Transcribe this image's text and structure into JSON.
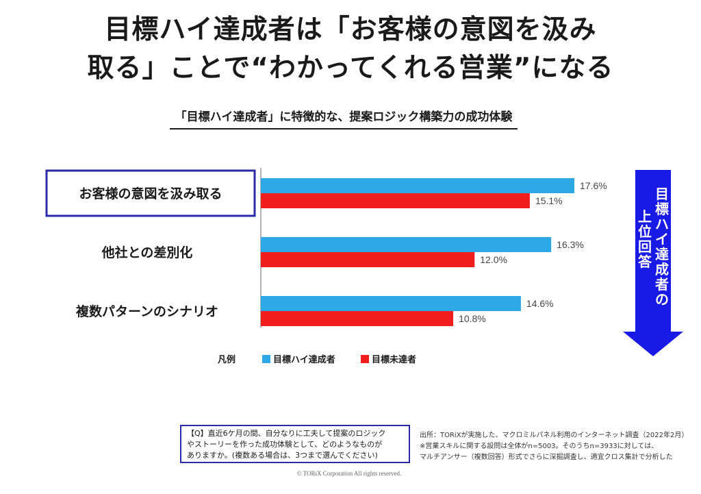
{
  "title_line1": "目標ハイ達成者は「お客様の意図を汲み",
  "title_line2": "取る」ことで“わかってくれる営業”になる",
  "subtitle": "「目標ハイ達成者」に特徴的な、提案ロジック構築力の成功体験",
  "arrow_label": [
    "目",
    "標",
    "ハ",
    "イ",
    "達",
    "成",
    "者",
    "の",
    "上",
    "位",
    "回",
    "答"
  ],
  "legend_title": "凡例",
  "question_lines": [
    "【Q】直近6ケ月の間、自分なりに工夫して提案のロジック",
    "やストーリーを作った成功体験として、どのようなものが",
    "ありますか。(複数ある場合は、3つまで選んでください)"
  ],
  "source_lines": [
    "出所：TORiXが実施した、マクロミルパネル利用のインターネット調査（2022年2月）",
    "※営業スキルに関する設問は全体がn=5003。そのうちn=3933に対しては、",
    "マルチアンサー（複数回答）形式でさらに深掘調査し、適宜クロス集計で分析した"
  ],
  "copyright": "© TORiX Corporation All rights reserved.",
  "colors": {
    "series_high": "#2fa8e6",
    "series_not": "#f01e1e",
    "highlight_border": "#2a2aa8",
    "arrow": "#1a1ae6"
  },
  "chart_data": {
    "type": "bar",
    "orientation": "horizontal",
    "categories": [
      "お客様の意図を汲み取る",
      "他社との差別化",
      "複数パターンのシナリオ"
    ],
    "highlighted_category": "お客様の意図を汲み取る",
    "unit": "%",
    "series": [
      {
        "name": "目標ハイ達成者",
        "values": [
          17.6,
          16.3,
          14.6
        ],
        "labels": [
          "17.6%",
          "16.3%",
          "14.6%"
        ],
        "color": "#2fa8e6"
      },
      {
        "name": "目標未達者",
        "values": [
          15.1,
          12.0,
          10.8
        ],
        "labels": [
          "15.1%",
          "12.0%",
          "10.8%"
        ],
        "color": "#f01e1e"
      }
    ],
    "legend_position": "bottom",
    "grid": false
  }
}
